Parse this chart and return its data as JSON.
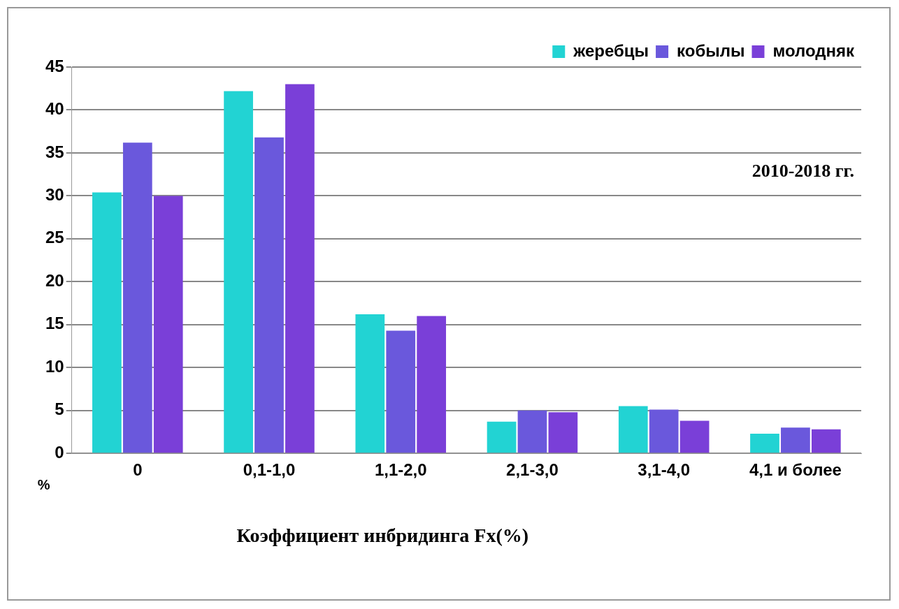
{
  "chart_data": {
    "type": "bar",
    "xlabel": "Коэффициент инбридинга Fx(%)",
    "ylabel": "%",
    "annotations": [
      "2010-2018 гг."
    ],
    "categories": [
      "0",
      "0,1-1,0",
      "1,1-2,0",
      "2,1-3,0",
      "3,1-4,0",
      "4,1 и более"
    ],
    "series": [
      {
        "name": "жеребцы",
        "color": "#22d3d3",
        "values": [
          30.4,
          42.2,
          16.2,
          3.7,
          5.5,
          2.3
        ]
      },
      {
        "name": "кобылы",
        "color": "#6a58dc",
        "values": [
          36.2,
          36.8,
          14.3,
          5,
          5.1,
          3
        ]
      },
      {
        "name": "молодняк",
        "color": "#7a3fd8",
        "values": [
          30,
          43,
          16,
          4.8,
          3.8,
          2.8
        ]
      }
    ],
    "ylim": [
      0,
      45
    ],
    "yticks": [
      0,
      5,
      10,
      15,
      20,
      25,
      30,
      35,
      40,
      45
    ],
    "grid": "y",
    "legend": "top right"
  }
}
